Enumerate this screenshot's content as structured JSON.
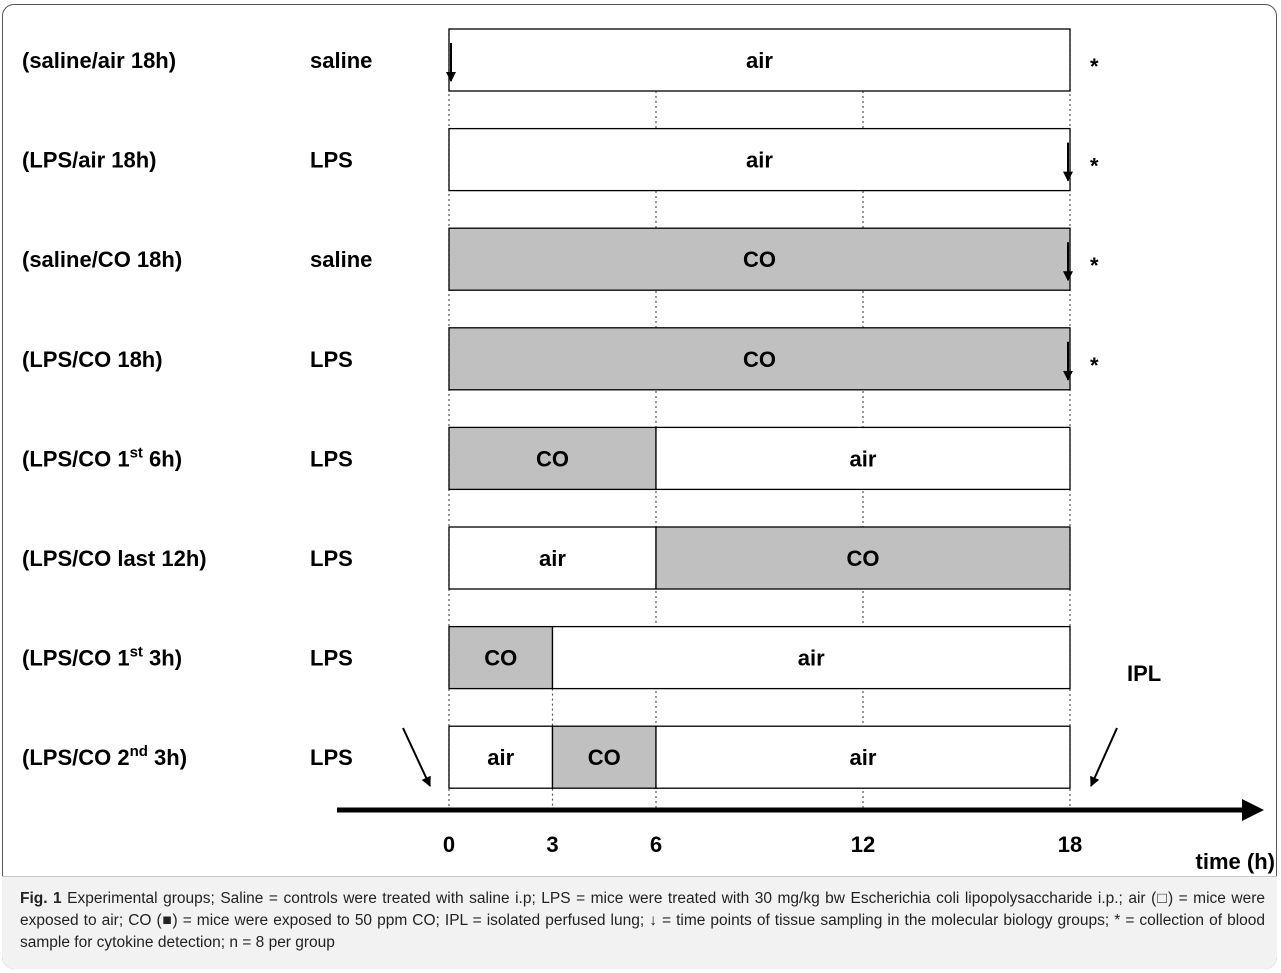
{
  "chart_data": {
    "type": "timeline",
    "x_axis": {
      "ticks": [
        0,
        3,
        6,
        12,
        18
      ],
      "label": "time (h)",
      "range": [
        0,
        18
      ]
    },
    "groups": [
      {
        "name": "(saline/air 18h)",
        "treatment": "saline",
        "segments": [
          {
            "start": 0,
            "end": 18,
            "exposure": "air"
          }
        ],
        "arrow_at": 0,
        "star": "*"
      },
      {
        "name": "(LPS/air 18h)",
        "treatment": "LPS",
        "segments": [
          {
            "start": 0,
            "end": 18,
            "exposure": "air"
          }
        ],
        "arrow_at": 18,
        "star": "*"
      },
      {
        "name": "(saline/CO 18h)",
        "treatment": "saline",
        "segments": [
          {
            "start": 0,
            "end": 18,
            "exposure": "CO"
          }
        ],
        "arrow_at": 18,
        "star": "*"
      },
      {
        "name": "(LPS/CO 18h)",
        "treatment": "LPS",
        "segments": [
          {
            "start": 0,
            "end": 18,
            "exposure": "CO"
          }
        ],
        "arrow_at": 18,
        "star": "*"
      },
      {
        "name": "(LPS/CO 1",
        "sup": "st",
        "name_tail": " 6h)",
        "treatment": "LPS",
        "segments": [
          {
            "start": 0,
            "end": 6,
            "exposure": "CO"
          },
          {
            "start": 6,
            "end": 18,
            "exposure": "air"
          }
        ]
      },
      {
        "name": "(LPS/CO last 12h)",
        "treatment": "LPS",
        "segments": [
          {
            "start": 0,
            "end": 6,
            "exposure": "air"
          },
          {
            "start": 6,
            "end": 18,
            "exposure": "CO"
          }
        ]
      },
      {
        "name": "(LPS/CO 1",
        "sup": "st",
        "name_tail": " 3h)",
        "treatment": "LPS",
        "segments": [
          {
            "start": 0,
            "end": 3,
            "exposure": "CO"
          },
          {
            "start": 3,
            "end": 18,
            "exposure": "air"
          }
        ]
      },
      {
        "name": "(LPS/CO 2",
        "sup": "nd",
        "name_tail": " 3h)",
        "treatment": "LPS",
        "segments": [
          {
            "start": 0,
            "end": 3,
            "exposure": "air"
          },
          {
            "start": 3,
            "end": 6,
            "exposure": "CO"
          },
          {
            "start": 6,
            "end": 18,
            "exposure": "air"
          }
        ]
      }
    ],
    "annotations": {
      "ipl": "IPL"
    },
    "colors": {
      "air": "#ffffff",
      "CO": "#c0c0c0",
      "outline": "#000000"
    }
  },
  "caption": {
    "label": "Fig. 1",
    "text": " Experimental groups; Saline = controls were treated with saline i.p; LPS = mice were treated with 30 mg/kg bw Escherichia coli lipopolysaccharide i.p.; air (□) = mice were exposed to air; CO (■) = mice were exposed to 50 ppm CO; IPL = isolated perfused lung; ↓ = time points of tissue sampling in the molecular biology groups; * = collection of blood sample for cytokine detection; n = 8 per group"
  }
}
